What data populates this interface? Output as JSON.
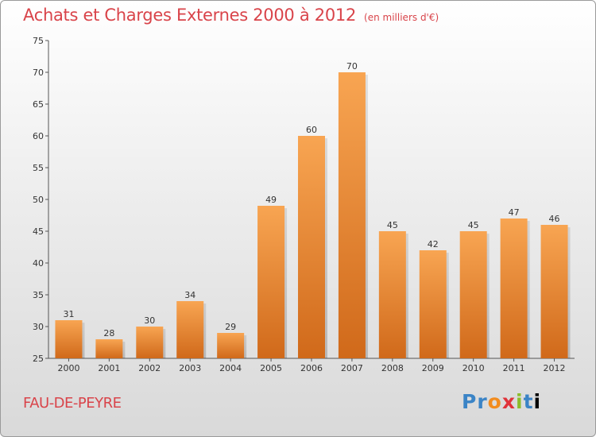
{
  "header": {
    "title": "Achats et Charges Externes 2000 à 2012",
    "subtitle": "(en milliers d'€)"
  },
  "footer": {
    "location": "FAU-DE-PEYRE",
    "logo": [
      "P",
      "r",
      "o",
      "x",
      "i",
      "t",
      "i"
    ]
  },
  "colors": {
    "bar_top": "#f8a552",
    "bar_bottom": "#d0691a",
    "title": "#d9444a"
  },
  "chart_data": {
    "type": "bar",
    "title": "Achats et Charges Externes 2000 à 2012",
    "subtitle": "(en milliers d'€)",
    "xlabel": "",
    "ylabel": "",
    "categories": [
      "2000",
      "2001",
      "2002",
      "2003",
      "2004",
      "2005",
      "2006",
      "2007",
      "2008",
      "2009",
      "2010",
      "2011",
      "2012"
    ],
    "values": [
      31,
      28,
      30,
      34,
      29,
      49,
      60,
      70,
      45,
      42,
      45,
      47,
      46
    ],
    "ylim": [
      25,
      75
    ],
    "yticks": [
      25,
      30,
      35,
      40,
      45,
      50,
      55,
      60,
      65,
      70,
      75
    ],
    "grid": false,
    "data_labels": true
  }
}
